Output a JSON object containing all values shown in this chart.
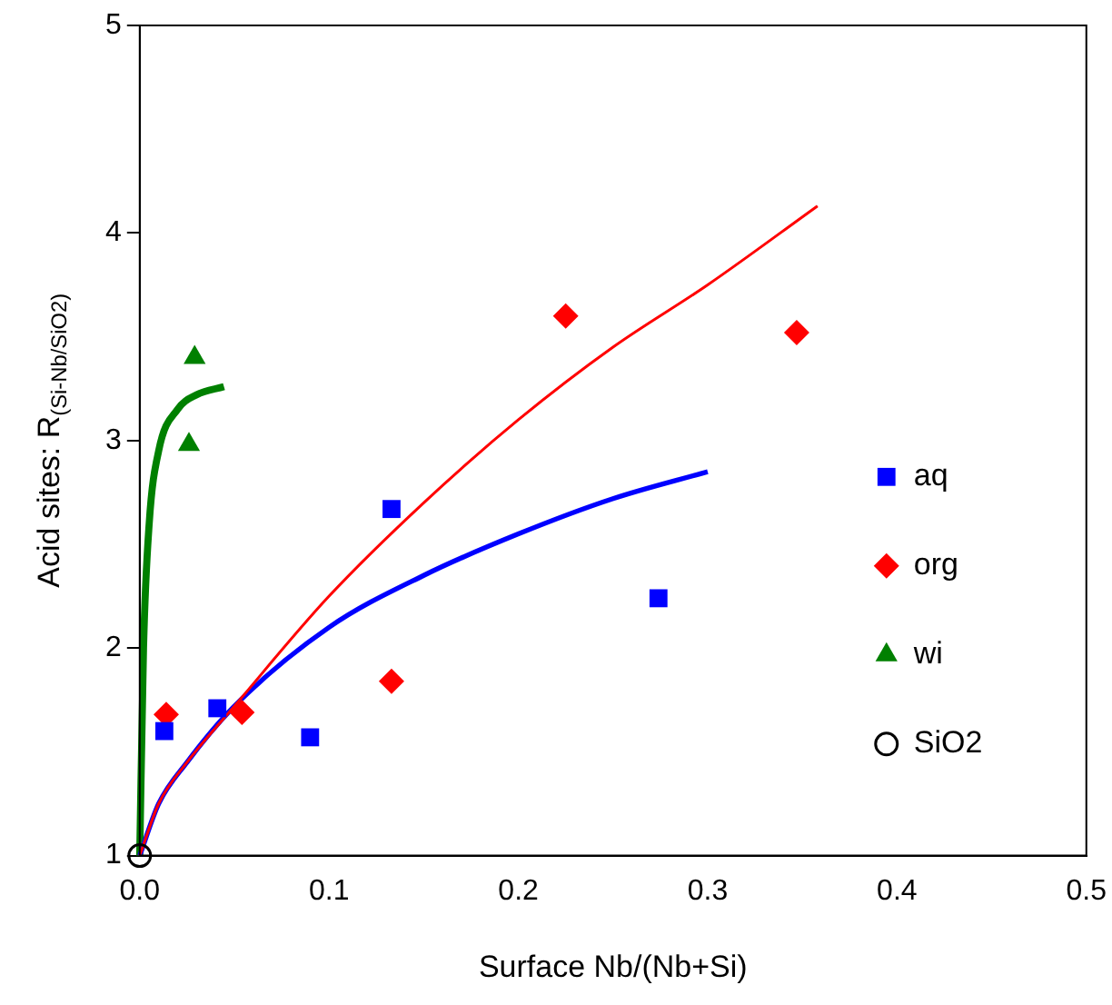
{
  "chart_data": {
    "type": "scatter",
    "xlabel": "Surface Nb/(Nb+Si)",
    "ylabel": "Acid sites: R$_{(Si-Nb/SiO2)}$",
    "xlim": [
      0,
      0.5
    ],
    "xticks": [
      {
        "value": 0,
        "label": "0.0"
      },
      0.1,
      0.2,
      0.3,
      0.4,
      0.5
    ],
    "ylim": [
      1,
      5
    ],
    "yticks": [
      1,
      2,
      3,
      4,
      5
    ],
    "grid": false,
    "legend": "right",
    "series": [
      {
        "type": "line",
        "color": "#ff0000",
        "marker": "none",
        "x": [
          0,
          0.01,
          0.025,
          0.05,
          0.1,
          0.15,
          0.2,
          0.25,
          0.3,
          0.358
        ],
        "values": [
          1,
          1.25,
          1.45,
          1.72,
          2.25,
          2.7,
          3.1,
          3.45,
          3.75,
          4.13
        ]
      },
      {
        "type": "line",
        "color": "#0000ff",
        "marker": "none",
        "x": [
          0,
          0.01,
          0.025,
          0.05,
          0.1,
          0.15,
          0.2,
          0.25,
          0.3
        ],
        "values": [
          1,
          1.25,
          1.45,
          1.72,
          2.1,
          2.35,
          2.55,
          2.72,
          2.85
        ]
      },
      {
        "type": "line",
        "color": "#008000",
        "marker": "none",
        "x": [
          0,
          0.002,
          0.005,
          0.01,
          0.02,
          0.03,
          0.0445
        ],
        "values": [
          1,
          2.0,
          2.6,
          2.95,
          3.15,
          3.22,
          3.26
        ]
      },
      {
        "name": "aq",
        "color": "#0000ff",
        "marker": "square",
        "x": [
          0.013,
          0.041,
          0.09,
          0.133,
          0.274
        ],
        "values": [
          1.6,
          1.71,
          1.57,
          2.67,
          2.24
        ]
      },
      {
        "name": "org",
        "color": "#ff0000",
        "marker": "diamond",
        "x": [
          0.014,
          0.054,
          0.133,
          0.225,
          0.347
        ],
        "values": [
          1.68,
          1.69,
          1.84,
          3.6,
          3.52
        ]
      },
      {
        "name": "wi",
        "color": "#008000",
        "marker": "triangle",
        "x": [
          0.026,
          0.029
        ],
        "values": [
          2.98,
          3.4
        ]
      },
      {
        "name": "SiO2",
        "color": "#000000",
        "marker": "circle",
        "x": [
          0
        ],
        "values": [
          1
        ]
      }
    ]
  }
}
